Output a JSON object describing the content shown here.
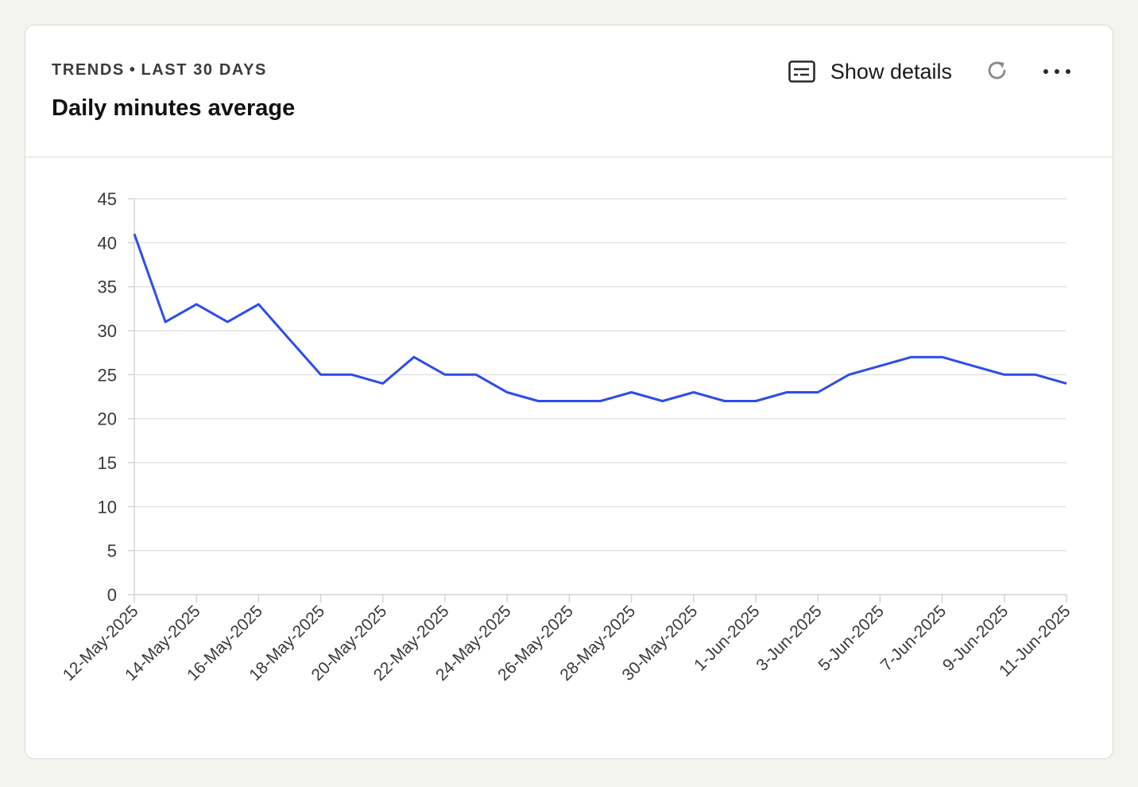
{
  "header": {
    "eyebrow_part1": "TRENDS",
    "eyebrow_separator": "•",
    "eyebrow_part2": "LAST 30 DAYS",
    "title": "Daily minutes average",
    "show_details_label": "Show details",
    "icons": {
      "details": "details-panel-icon",
      "refresh": "refresh-icon",
      "more": "more-horizontal-icon"
    }
  },
  "colors": {
    "line": "#2d4de8",
    "grid": "#e2e2e2",
    "axis": "#d4d4d4",
    "tick_text": "#3a3a3a"
  },
  "chart_data": {
    "type": "line",
    "title": "Daily minutes average",
    "xlabel": "",
    "ylabel": "",
    "ylim": [
      0,
      45
    ],
    "yticks": [
      0,
      5,
      10,
      15,
      20,
      25,
      30,
      35,
      40,
      45
    ],
    "grid": true,
    "legend": "none",
    "x": [
      "12-May-2025",
      "13-May-2025",
      "14-May-2025",
      "15-May-2025",
      "16-May-2025",
      "17-May-2025",
      "18-May-2025",
      "19-May-2025",
      "20-May-2025",
      "21-May-2025",
      "22-May-2025",
      "23-May-2025",
      "24-May-2025",
      "25-May-2025",
      "26-May-2025",
      "27-May-2025",
      "28-May-2025",
      "29-May-2025",
      "30-May-2025",
      "31-May-2025",
      "1-Jun-2025",
      "2-Jun-2025",
      "3-Jun-2025",
      "4-Jun-2025",
      "5-Jun-2025",
      "6-Jun-2025",
      "7-Jun-2025",
      "8-Jun-2025",
      "9-Jun-2025",
      "10-Jun-2025",
      "11-Jun-2025"
    ],
    "xtick_labels": [
      "12-May-2025",
      "14-May-2025",
      "16-May-2025",
      "18-May-2025",
      "20-May-2025",
      "22-May-2025",
      "24-May-2025",
      "26-May-2025",
      "28-May-2025",
      "30-May-2025",
      "1-Jun-2025",
      "3-Jun-2025",
      "5-Jun-2025",
      "7-Jun-2025",
      "9-Jun-2025",
      "11-Jun-2025"
    ],
    "series": [
      {
        "values": [
          41,
          31,
          33,
          31,
          33,
          29,
          25,
          25,
          24,
          27,
          25,
          25,
          23,
          22,
          22,
          22,
          23,
          22,
          23,
          22,
          22,
          23,
          23,
          25,
          26,
          27,
          27,
          26,
          25,
          25,
          24
        ]
      }
    ]
  }
}
